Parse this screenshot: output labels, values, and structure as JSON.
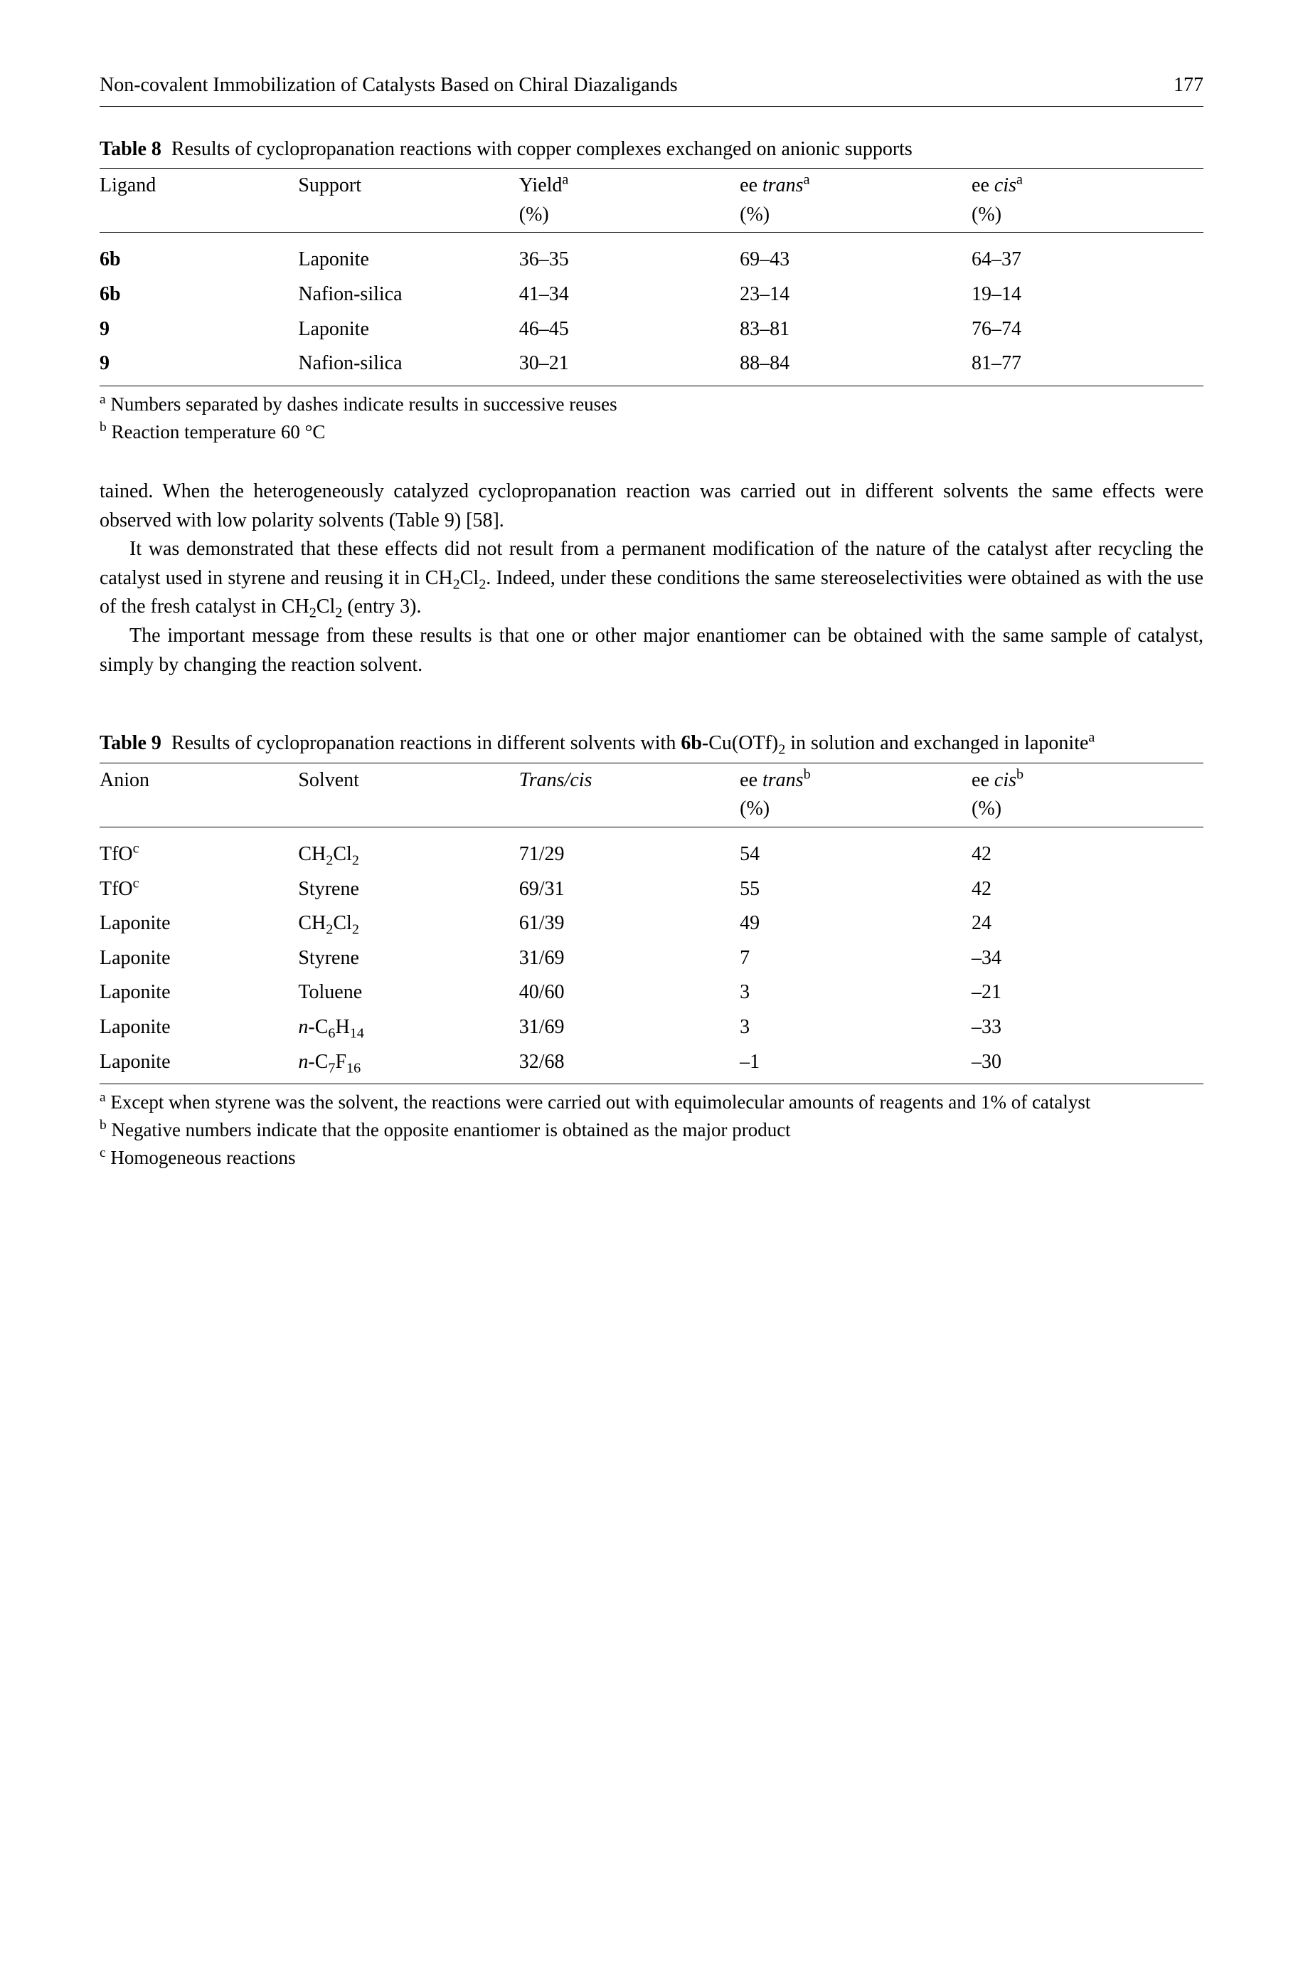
{
  "header": {
    "running_head": "Non-covalent Immobilization of Catalysts Based on Chiral Diazaligands",
    "page_number": "177"
  },
  "table8": {
    "label": "Table 8",
    "caption_rest": "Results of cyclopropanation reactions with copper complexes exchanged on anionic supports",
    "headers": {
      "ligand": "Ligand",
      "support": "Support",
      "yield": "Yield",
      "yield_sup": "a",
      "ee_trans": "ee ",
      "ee_trans_it": "trans",
      "ee_trans_sup": "a",
      "ee_cis": "ee ",
      "ee_cis_it": "cis",
      "ee_cis_sup": "a",
      "pct": "(%)"
    },
    "rows": [
      {
        "ligand": "6b",
        "support": "Laponite",
        "yield": "36–35",
        "trans": "69–43",
        "cis": "64–37"
      },
      {
        "ligand": "6b",
        "support": "Nafion-silica",
        "yield": "41–34",
        "trans": "23–14",
        "cis": "19–14"
      },
      {
        "ligand": "9",
        "support": "Laponite",
        "yield": "46–45",
        "trans": "83–81",
        "cis": "76–74"
      },
      {
        "ligand": "9",
        "support": "Nafion-silica",
        "yield": "30–21",
        "trans": "88–84",
        "cis": "81–77"
      }
    ],
    "footnotes": {
      "a_sup": "a",
      "a_text": " Numbers separated by dashes indicate results in successive reuses",
      "b_sup": "b",
      "b_text": " Reaction temperature 60 °C"
    }
  },
  "body": {
    "p1_a": "tained. When the heterogeneously catalyzed cyclopropanation reaction was carried out in different solvents the same effects were observed with low polarity solvents (Table 9) [58].",
    "p2_a": "It was demonstrated that these effects did not result from a permanent modification of the nature of the catalyst after recycling the catalyst used in styrene and reusing it in CH",
    "p2_b": "Cl",
    "p2_c": ". Indeed, under these conditions the same stereoselectivities were obtained as with the use of the fresh catalyst in CH",
    "p2_d": "Cl",
    "p2_e": " (entry 3).",
    "sub2": "2",
    "p3": "The important message from these results is that one or other major enantiomer can be obtained with the same sample of catalyst, simply by changing the reaction solvent."
  },
  "table9": {
    "label": "Table 9",
    "caption_pre": "Results of cyclopropanation reactions in different solvents with ",
    "caption_bold": "6b",
    "caption_mid": "-Cu(OTf)",
    "caption_sub": "2",
    "caption_post": " in solution and exchanged in laponite",
    "caption_sup": "a",
    "headers": {
      "anion": "Anion",
      "solvent": "Solvent",
      "transcis": "Trans/cis",
      "ee_trans": "ee ",
      "ee_trans_it": "trans",
      "ee_trans_sup": "b",
      "ee_cis": "ee ",
      "ee_cis_it": "cis",
      "ee_cis_sup": "b",
      "pct": "(%)"
    },
    "rows": [
      {
        "anion": "TfO",
        "anion_sup": "c",
        "solvent_html": "CH2Cl2",
        "tc": "71/29",
        "trans": "54",
        "cis": "42"
      },
      {
        "anion": "TfO",
        "anion_sup": "c",
        "solvent_html": "Styrene",
        "tc": "69/31",
        "trans": "55",
        "cis": "42"
      },
      {
        "anion": "Laponite",
        "anion_sup": "",
        "solvent_html": "CH2Cl2",
        "tc": "61/39",
        "trans": "49",
        "cis": "24"
      },
      {
        "anion": "Laponite",
        "anion_sup": "",
        "solvent_html": "Styrene",
        "tc": "31/69",
        "trans": "7",
        "cis": "–34"
      },
      {
        "anion": "Laponite",
        "anion_sup": "",
        "solvent_html": "Toluene",
        "tc": "40/60",
        "trans": "3",
        "cis": "–21"
      },
      {
        "anion": "Laponite",
        "anion_sup": "",
        "solvent_html": "nC6H14",
        "tc": "31/69",
        "trans": "3",
        "cis": "–33"
      },
      {
        "anion": "Laponite",
        "anion_sup": "",
        "solvent_html": "nC7F16",
        "tc": "32/68",
        "trans": "–1",
        "cis": "–30"
      }
    ],
    "footnotes": {
      "a_sup": "a",
      "a_text": " Except when styrene was the solvent, the reactions were carried out with equimolecular amounts of reagents and 1% of catalyst",
      "b_sup": "b",
      "b_text": " Negative numbers indicate that the opposite enantiomer is obtained as the major product",
      "c_sup": "c",
      "c_text": " Homogeneous reactions"
    }
  },
  "chem": {
    "n_prefix": "n",
    "dash": "-",
    "C": "C",
    "H": "H",
    "F": "F",
    "Cl": "Cl",
    "s2": "2",
    "s6": "6",
    "s7": "7",
    "s14": "14",
    "s16": "16"
  }
}
